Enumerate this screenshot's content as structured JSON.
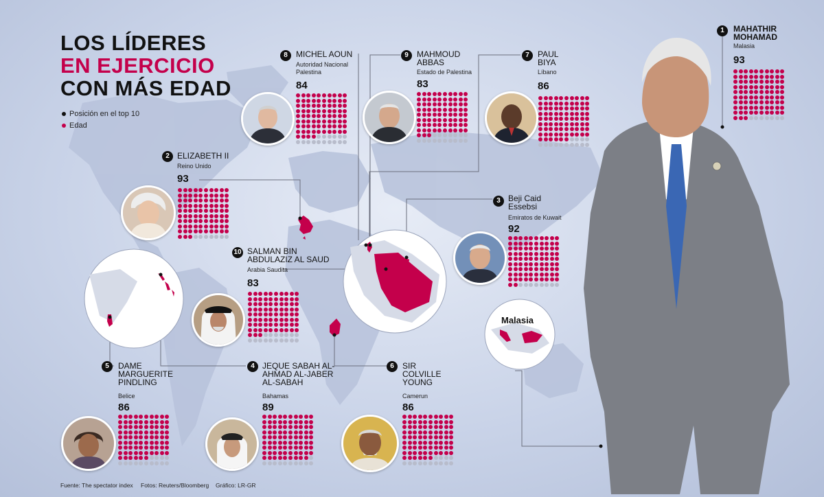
{
  "title": {
    "line1": "LOS LÍDERES",
    "line2": "EN EJERCICIO",
    "line3": "CON MÁS EDAD"
  },
  "legend": {
    "position": "Posición en el top 10",
    "age": "Edad",
    "position_color": "#111111",
    "age_color": "#c4004b"
  },
  "map_label": "Malasia",
  "leaders": [
    {
      "rank": "1",
      "name": "MAHATHIR MOHAMAD",
      "country": "Malasia",
      "age": "93",
      "age_value": 93
    },
    {
      "rank": "2",
      "name": "ELIZABETH II",
      "country": "Reino Unido",
      "age": "93",
      "age_value": 93
    },
    {
      "rank": "3",
      "name": "Beji Caid Essebsi",
      "country": "Emiratos de Kuwait",
      "age": "92",
      "age_value": 92
    },
    {
      "rank": "4",
      "name": "JEQUE SABAH AL-AHMAD AL-JABER AL-SABAH",
      "country": "Bahamas",
      "age": "89",
      "age_value": 89
    },
    {
      "rank": "5",
      "name": "DAME MARGUERITE PINDLING",
      "country": "Belice",
      "age": "86",
      "age_value": 86
    },
    {
      "rank": "6",
      "name": "SIR COLVILLE YOUNG",
      "country": "Camerun",
      "age": "86",
      "age_value": 86
    },
    {
      "rank": "7",
      "name": "PAUL BIYA",
      "country": "Líbano",
      "age": "86",
      "age_value": 86
    },
    {
      "rank": "8",
      "name": "MICHEL AOUN",
      "country": "Autoridad Nacional Palestina",
      "age": "84",
      "age_value": 84
    },
    {
      "rank": "9",
      "name": "MAHMOUD ABBAS",
      "country": "Estado de Palestina",
      "age": "83",
      "age_value": 83
    },
    {
      "rank": "10",
      "name": "SALMAN BIN ABDULAZIZ AL SAUD",
      "country": "Arabia Saudita",
      "age": "83",
      "age_value": 83
    }
  ],
  "footer": {
    "source": "Fuente: The spectator index",
    "photos": "Fotos: Reuters/Bloomberg",
    "graphic": "Gráfico: LR-GR"
  },
  "colors": {
    "accent": "#c4004b",
    "empty_dot": "#b8bccb",
    "background": "#c9d3e8",
    "map": "#b7c2db"
  }
}
